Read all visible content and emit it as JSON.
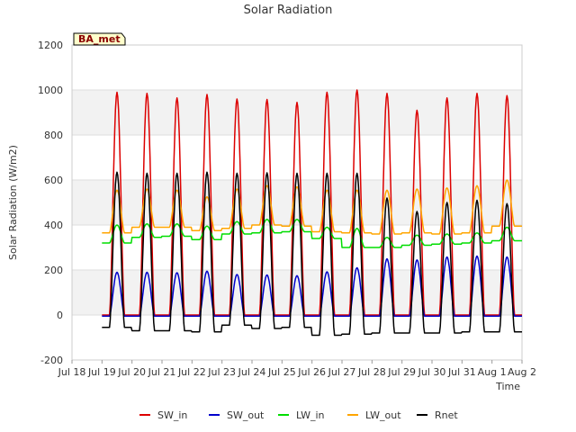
{
  "chart_data": {
    "type": "line",
    "title": "Solar Radiation",
    "xlabel": "Time",
    "ylabel": "Solar Radiation (W/m2)",
    "badge": "BA_met",
    "ylim": [
      -200,
      1200
    ],
    "xlim": [
      0,
      15
    ],
    "y_ticks": [
      -200,
      0,
      200,
      400,
      600,
      800,
      1000,
      1200
    ],
    "x_ticks": [
      "Jul 18",
      "Jul 19",
      "Jul 20",
      "Jul 21",
      "Jul 22",
      "Jul 23",
      "Jul 24",
      "Jul 25",
      "Jul 26",
      "Jul 27",
      "Jul 28",
      "Jul 29",
      "Jul 30",
      "Jul 31",
      "Aug 1",
      "Aug 2"
    ],
    "grid": true,
    "legend_position": "bottom",
    "colors": {
      "band": "#f2f2f2",
      "grid": "#dddddd",
      "axis": "#cccccc"
    },
    "days": [
      "Jul 19",
      "Jul 20",
      "Jul 21",
      "Jul 22",
      "Jul 23",
      "Jul 24",
      "Jul 25",
      "Jul 26",
      "Jul 27",
      "Jul 28",
      "Jul 29",
      "Jul 30",
      "Jul 31",
      "Aug 1"
    ],
    "series": [
      {
        "name": "SW_in",
        "color": "#dd0000",
        "daily_peak": [
          990,
          985,
          965,
          980,
          960,
          958,
          945,
          990,
          1000,
          985,
          910,
          965,
          985,
          975
        ],
        "night": 0
      },
      {
        "name": "SW_out",
        "color": "#0000cc",
        "daily_peak": [
          190,
          190,
          188,
          195,
          180,
          178,
          175,
          192,
          210,
          250,
          245,
          258,
          262,
          258
        ],
        "night": -5
      },
      {
        "name": "LW_in",
        "color": "#00dd00",
        "daily_peak": [
          400,
          405,
          405,
          395,
          415,
          425,
          425,
          390,
          385,
          345,
          355,
          360,
          365,
          390
        ],
        "night": [
          320,
          345,
          350,
          335,
          360,
          365,
          370,
          340,
          300,
          300,
          310,
          315,
          320,
          330
        ]
      },
      {
        "name": "LW_out",
        "color": "#ffa500",
        "daily_peak": [
          555,
          560,
          555,
          525,
          560,
          575,
          570,
          555,
          555,
          555,
          560,
          565,
          575,
          600
        ],
        "night": [
          365,
          390,
          390,
          375,
          385,
          400,
          395,
          370,
          365,
          360,
          365,
          360,
          365,
          395
        ]
      },
      {
        "name": "Rnet",
        "color": "#000000",
        "daily_peak": [
          635,
          630,
          630,
          635,
          630,
          632,
          630,
          630,
          630,
          520,
          460,
          500,
          510,
          495
        ],
        "night": [
          -55,
          -70,
          -70,
          -75,
          -45,
          -60,
          -55,
          -90,
          -85,
          -80,
          -80,
          -80,
          -75,
          -75
        ]
      }
    ]
  }
}
